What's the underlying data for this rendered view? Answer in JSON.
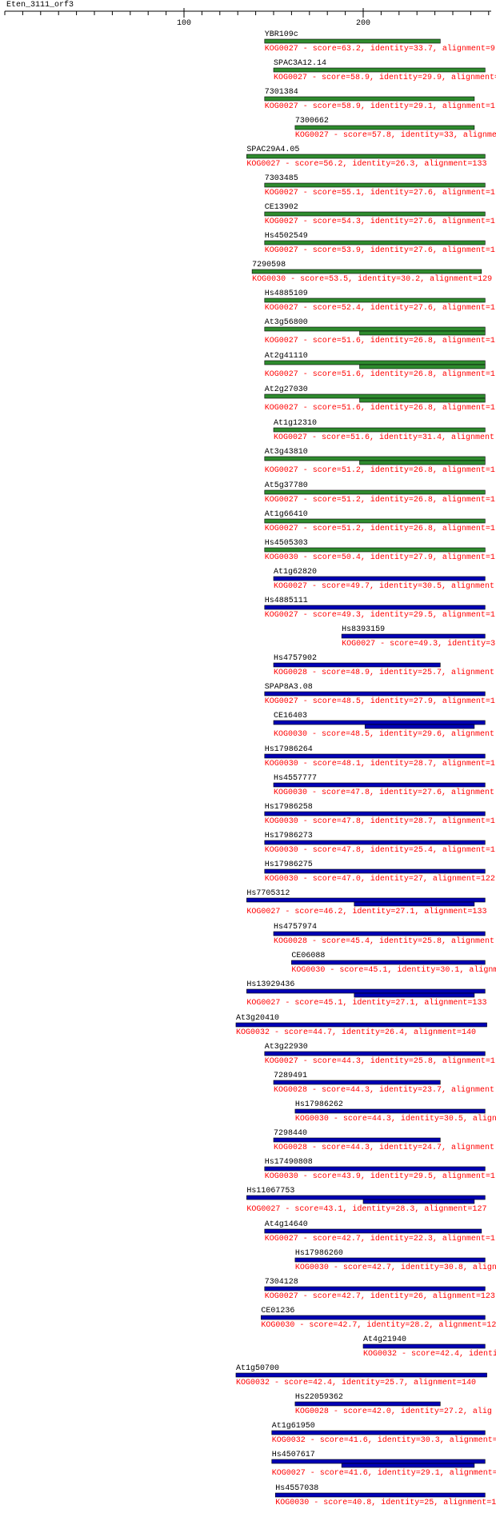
{
  "ruler": {
    "title": "Eten_3111_orf3",
    "range": [
      0,
      273
    ],
    "ticks": [
      100,
      200
    ],
    "minor_step": 10
  },
  "hits": [
    {
      "name": "YBR109c",
      "label": "KOG0027 - score=63.2, identity=33.7, alignment=9",
      "color": "#2e8b2e",
      "bars": [
        [
          145,
          243
        ]
      ]
    },
    {
      "name": "SPAC3A12.14",
      "label": "KOG0027 - score=58.9, identity=29.9, alignment=1",
      "color": "#2e8b2e",
      "bars": [
        [
          150,
          268
        ]
      ]
    },
    {
      "name": "7301384",
      "label": "KOG0027 - score=58.9, identity=29.1, alignment=1",
      "color": "#2e8b2e",
      "bars": [
        [
          145,
          262
        ]
      ]
    },
    {
      "name": "7300662",
      "label": "KOG0027 - score=57.8, identity=33, alignme",
      "color": "#2e8b2e",
      "bars": [
        [
          162,
          262
        ]
      ]
    },
    {
      "name": "SPAC29A4.05",
      "label": "KOG0027 - score=56.2, identity=26.3, alignment=133",
      "color": "#2e8b2e",
      "bars": [
        [
          135,
          268
        ]
      ]
    },
    {
      "name": "7303485",
      "label": "KOG0027 - score=55.1, identity=27.6, alignment=1",
      "color": "#2e8b2e",
      "bars": [
        [
          145,
          268
        ]
      ]
    },
    {
      "name": "CE13902",
      "label": "KOG0027 - score=54.3, identity=27.6, alignment=1",
      "color": "#2e8b2e",
      "bars": [
        [
          145,
          268
        ]
      ]
    },
    {
      "name": "Hs4502549",
      "label": "KOG0027 - score=53.9, identity=27.6, alignment=1",
      "color": "#2e8b2e",
      "bars": [
        [
          145,
          268
        ]
      ]
    },
    {
      "name": "7290598",
      "label": "KOG0030 - score=53.5, identity=30.2, alignment=129",
      "color": "#2e8b2e",
      "bars": [
        [
          138,
          266
        ]
      ]
    },
    {
      "name": "Hs4885109",
      "label": "KOG0027 - score=52.4, identity=27.6, alignment=1",
      "color": "#2e8b2e",
      "bars": [
        [
          145,
          268
        ]
      ]
    },
    {
      "name": "At3g56800",
      "label": "KOG0027 - score=51.6, identity=26.8, alignment=1",
      "color": "#2e8b2e",
      "bars": [
        [
          145,
          268
        ],
        [
          198,
          268
        ]
      ]
    },
    {
      "name": "At2g41110",
      "label": "KOG0027 - score=51.6, identity=26.8, alignment=1",
      "color": "#2e8b2e",
      "bars": [
        [
          145,
          268
        ],
        [
          198,
          268
        ]
      ]
    },
    {
      "name": "At2g27030",
      "label": "KOG0027 - score=51.6, identity=26.8, alignment=1",
      "color": "#2e8b2e",
      "bars": [
        [
          145,
          268
        ],
        [
          198,
          268
        ]
      ]
    },
    {
      "name": "At1g12310",
      "label": "KOG0027 - score=51.6, identity=31.4, alignment",
      "color": "#2e8b2e",
      "bars": [
        [
          150,
          268
        ]
      ]
    },
    {
      "name": "At3g43810",
      "label": "KOG0027 - score=51.2, identity=26.8, alignment=1",
      "color": "#2e8b2e",
      "bars": [
        [
          145,
          268
        ],
        [
          198,
          268
        ]
      ]
    },
    {
      "name": "At5g37780",
      "label": "KOG0027 - score=51.2, identity=26.8, alignment=1",
      "color": "#2e8b2e",
      "bars": [
        [
          145,
          268
        ]
      ]
    },
    {
      "name": "At1g66410",
      "label": "KOG0027 - score=51.2, identity=26.8, alignment=1",
      "color": "#2e8b2e",
      "bars": [
        [
          145,
          268
        ]
      ]
    },
    {
      "name": "Hs4505303",
      "label": "KOG0030 - score=50.4, identity=27.9, alignment=1",
      "color": "#2e8b2e",
      "bars": [
        [
          145,
          268
        ]
      ]
    },
    {
      "name": "At1g62820",
      "label": "KOG0027 - score=49.7, identity=30.5, alignment",
      "color": "#0000b4",
      "bars": [
        [
          150,
          268
        ]
      ]
    },
    {
      "name": "Hs4885111",
      "label": "KOG0027 - score=49.3, identity=29.5, alignment=1",
      "color": "#0000b4",
      "bars": [
        [
          145,
          268
        ]
      ]
    },
    {
      "name": "Hs8393159",
      "label": "KOG0027 - score=49.3, identity=3",
      "color": "#0000b4",
      "bars": [
        [
          188,
          268
        ]
      ]
    },
    {
      "name": "Hs4757902",
      "label": "KOG0028 - score=48.9, identity=25.7, alignment",
      "color": "#0000b4",
      "bars": [
        [
          150,
          243
        ]
      ]
    },
    {
      "name": "SPAP8A3.08",
      "label": "KOG0027 - score=48.5, identity=27.9, alignment=1",
      "color": "#0000b4",
      "bars": [
        [
          145,
          268
        ]
      ]
    },
    {
      "name": "CE16403",
      "label": "KOG0030 - score=48.5, identity=29.6, alignment",
      "color": "#0000b4",
      "bars": [
        [
          150,
          268
        ],
        [
          201,
          262
        ]
      ]
    },
    {
      "name": "Hs17986264",
      "label": "KOG0030 - score=48.1, identity=28.7, alignment=1",
      "color": "#0000b4",
      "bars": [
        [
          145,
          268
        ]
      ]
    },
    {
      "name": "Hs4557777",
      "label": "KOG0030 - score=47.8, identity=27.6, alignment",
      "color": "#0000b4",
      "bars": [
        [
          150,
          268
        ]
      ]
    },
    {
      "name": "Hs17986258",
      "label": "KOG0030 - score=47.8, identity=28.7, alignment=1",
      "color": "#0000b4",
      "bars": [
        [
          145,
          268
        ]
      ]
    },
    {
      "name": "Hs17986273",
      "label": "KOG0030 - score=47.8, identity=25.4, alignment=1",
      "color": "#0000b4",
      "bars": [
        [
          145,
          268
        ]
      ]
    },
    {
      "name": "Hs17986275",
      "label": "KOG0030 - score=47.0, identity=27, alignment=122",
      "color": "#0000b4",
      "bars": [
        [
          145,
          268
        ]
      ]
    },
    {
      "name": "Hs7705312",
      "label": "KOG0027 - score=46.2, identity=27.1, alignment=133",
      "color": "#0000b4",
      "bars": [
        [
          135,
          268
        ],
        [
          195,
          262
        ]
      ]
    },
    {
      "name": "Hs4757974",
      "label": "KOG0028 - score=45.4, identity=25.8, alignment",
      "color": "#0000b4",
      "bars": [
        [
          150,
          268
        ]
      ]
    },
    {
      "name": "CE06088",
      "label": "KOG0030 - score=45.1, identity=30.1, alignm",
      "color": "#0000b4",
      "bars": [
        [
          160,
          268
        ]
      ]
    },
    {
      "name": "Hs13929436",
      "label": "KOG0027 - score=45.1, identity=27.1, alignment=133",
      "color": "#0000b4",
      "bars": [
        [
          135,
          268
        ],
        [
          195,
          262
        ]
      ]
    },
    {
      "name": "At3g20410",
      "label": "KOG0032 - score=44.7, identity=26.4, alignment=140",
      "color": "#0000b4",
      "bars": [
        [
          129,
          269
        ]
      ]
    },
    {
      "name": "At3g22930",
      "label": "KOG0027 - score=44.3, identity=25.8, alignment=1",
      "color": "#0000b4",
      "bars": [
        [
          145,
          268
        ]
      ]
    },
    {
      "name": "7289491",
      "label": "KOG0028 - score=44.3, identity=23.7, alignment",
      "color": "#0000b4",
      "bars": [
        [
          150,
          243
        ]
      ]
    },
    {
      "name": "Hs17986262",
      "label": "KOG0030 - score=44.3, identity=30.5, align",
      "color": "#0000b4",
      "bars": [
        [
          162,
          268
        ]
      ]
    },
    {
      "name": "7298440",
      "label": "KOG0028 - score=44.3, identity=24.7, alignment",
      "color": "#0000b4",
      "bars": [
        [
          150,
          243
        ]
      ]
    },
    {
      "name": "Hs17490808",
      "label": "KOG0030 - score=43.9, identity=29.5, alignment=1",
      "color": "#0000b4",
      "bars": [
        [
          145,
          268
        ]
      ]
    },
    {
      "name": "Hs11067753",
      "label": "KOG0027 - score=43.1, identity=28.3, alignment=127",
      "color": "#0000b4",
      "bars": [
        [
          135,
          268
        ],
        [
          200,
          262
        ]
      ]
    },
    {
      "name": "At4g14640",
      "label": "KOG0027 - score=42.7, identity=22.3, alignment=1",
      "color": "#0000b4",
      "bars": [
        [
          145,
          266
        ]
      ]
    },
    {
      "name": "Hs17986260",
      "label": "KOG0030 - score=42.7, identity=30.8, align",
      "color": "#0000b4",
      "bars": [
        [
          162,
          268
        ]
      ]
    },
    {
      "name": "7304128",
      "label": "KOG0027 - score=42.7, identity=26, alignment=123",
      "color": "#0000b4",
      "bars": [
        [
          145,
          268
        ]
      ]
    },
    {
      "name": "CE01236",
      "label": "KOG0030 - score=42.7, identity=28.2, alignment=12",
      "color": "#0000b4",
      "bars": [
        [
          143,
          268
        ]
      ]
    },
    {
      "name": "At4g21940",
      "label": "KOG0032 - score=42.4, identi",
      "color": "#0000b4",
      "bars": [
        [
          200,
          268
        ]
      ]
    },
    {
      "name": "At1g50700",
      "label": "KOG0032 - score=42.4, identity=25.7, alignment=140",
      "color": "#0000b4",
      "bars": [
        [
          129,
          269
        ]
      ]
    },
    {
      "name": "Hs22059362",
      "label": "KOG0028 - score=42.0, identity=27.2, alig",
      "color": "#0000b4",
      "bars": [
        [
          162,
          243
        ]
      ]
    },
    {
      "name": "At1g61950",
      "label": "KOG0032 - score=41.6, identity=30.3, alignment=",
      "color": "#0000b4",
      "bars": [
        [
          149,
          268
        ]
      ]
    },
    {
      "name": "Hs4507617",
      "label": "KOG0027 - score=41.6, identity=29.1, alignment=1",
      "color": "#0000b4",
      "bars": [
        [
          149,
          268
        ],
        [
          188,
          262
        ]
      ]
    },
    {
      "name": "Hs4557038",
      "label": "KOG0030 - score=40.8, identity=25, alignment=1",
      "color": "#0000b4",
      "bars": [
        [
          151,
          268
        ]
      ]
    }
  ]
}
